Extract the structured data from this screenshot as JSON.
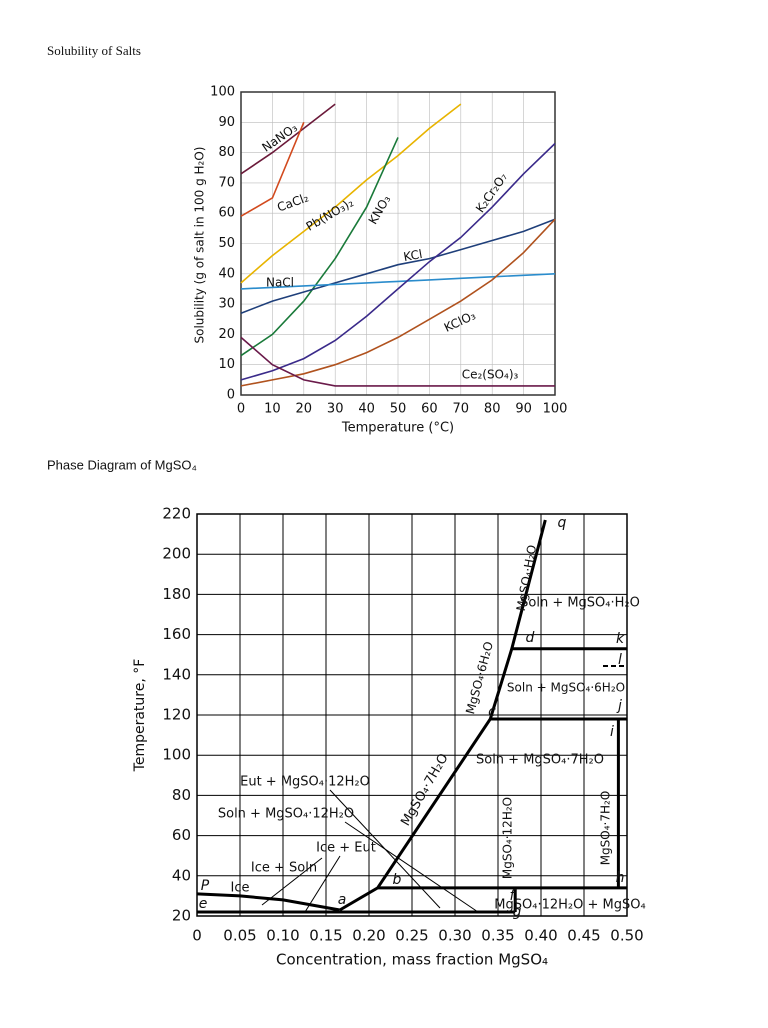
{
  "chart_data": [
    {
      "type": "line",
      "title": "Solubility of Salts",
      "x_label": "Temperature (°C)",
      "y_label": "Solubility (g of salt in 100 g H₂O)",
      "x": [
        0,
        10,
        20,
        30,
        40,
        50,
        60,
        70,
        80,
        90,
        100
      ],
      "xlim": [
        0,
        100
      ],
      "ylim": [
        0,
        100
      ],
      "xticks": [
        0,
        10,
        20,
        30,
        40,
        50,
        60,
        70,
        80,
        90,
        100
      ],
      "yticks": [
        0,
        10,
        20,
        30,
        40,
        50,
        60,
        70,
        80,
        90,
        100
      ],
      "grid": true,
      "series": [
        {
          "name": "NaNO₃",
          "color": "#6b1a3a",
          "values": [
            73,
            80,
            88,
            96,
            null,
            null,
            null,
            null,
            null,
            null,
            null
          ]
        },
        {
          "name": "CaCl₂",
          "color": "#d24a1e",
          "values": [
            59,
            65,
            90,
            null,
            null,
            null,
            null,
            null,
            null,
            null,
            null
          ]
        },
        {
          "name": "Pb(NO₃)₂",
          "color": "#e8b400",
          "values": [
            37,
            46,
            54,
            62,
            71,
            79,
            88,
            96,
            null,
            null,
            null
          ]
        },
        {
          "name": "KNO₃",
          "color": "#1a7a3a",
          "values": [
            13,
            20,
            31,
            45,
            62,
            85,
            null,
            null,
            null,
            null,
            null
          ]
        },
        {
          "name": "KCl",
          "color": "#1f3f7a",
          "values": [
            27,
            31,
            34,
            37,
            40,
            43,
            45,
            48,
            51,
            54,
            58
          ]
        },
        {
          "name": "NaCl",
          "color": "#2a8ccc",
          "values": [
            35,
            35.5,
            36,
            36.5,
            37,
            37.5,
            38,
            38.5,
            39,
            39.5,
            40
          ]
        },
        {
          "name": "K₂Cr₂O₇",
          "color": "#3a2a8a",
          "values": [
            5,
            8,
            12,
            18,
            26,
            35,
            44,
            52,
            62,
            73,
            83
          ]
        },
        {
          "name": "KClO₃",
          "color": "#b0521e",
          "values": [
            3,
            5,
            7,
            10,
            14,
            19,
            25,
            31,
            38,
            47,
            58
          ]
        },
        {
          "name": "Ce₂(SO₄)₃",
          "color": "#6a1a4a",
          "values": [
            19,
            10,
            5,
            3,
            3,
            3,
            3,
            3,
            3,
            3,
            3
          ]
        }
      ]
    },
    {
      "type": "line",
      "title": "Phase Diagram of MgSO₄",
      "x_label": "Concentration, mass fraction MgSO₄",
      "y_label": "Temperature, °F",
      "xlim": [
        0,
        0.5
      ],
      "ylim": [
        20,
        220
      ],
      "xticks": [
        0,
        0.05,
        {
          "value": 0.1,
          "label": "0.10"
        },
        0.15,
        {
          "value": 0.2,
          "label": "0.20"
        },
        0.25,
        {
          "value": 0.3,
          "label": "0.30"
        },
        0.35,
        {
          "value": 0.4,
          "label": "0.40"
        },
        0.45,
        {
          "value": 0.5,
          "label": "0.50"
        }
      ],
      "yticks": [
        20,
        40,
        60,
        80,
        100,
        120,
        140,
        160,
        180,
        200,
        220
      ],
      "grid": true,
      "series": [
        {
          "color": "#000000",
          "x": [
            0,
            0.05,
            0.1,
            0.166
          ],
          "values": [
            31,
            30,
            28,
            23
          ]
        },
        {
          "color": "#000000",
          "x": [
            0.166,
            0.21,
            0.341,
            0.366,
            0.405
          ],
          "values": [
            23,
            34,
            118,
            153,
            217
          ]
        },
        {
          "color": "#000000",
          "x": [
            0,
            0.37
          ],
          "values": [
            22,
            22
          ]
        },
        {
          "color": "#000000",
          "x": [
            0.21,
            0.5
          ],
          "values": [
            34,
            34
          ]
        },
        {
          "color": "#000000",
          "x": [
            0.341,
            0.5
          ],
          "values": [
            118,
            118
          ]
        },
        {
          "color": "#000000",
          "x": [
            0.366,
            0.5
          ],
          "values": [
            153,
            153
          ]
        },
        {
          "color": "#000000",
          "x": [
            0.37,
            0.37
          ],
          "values": [
            22,
            34
          ]
        },
        {
          "color": "#000000",
          "x": [
            0.49,
            0.49
          ],
          "values": [
            34,
            118
          ]
        }
      ],
      "annotations": [
        "Eut + MgSO₄·12H₂O",
        "Soln + MgSO₄·12H₂O",
        "Ice + Eut",
        "Ice + Soln",
        "Ice",
        "Soln + MgSO₄·7H₂O",
        "Soln + MgSO₄·6H₂O",
        "Soln + MgSO₄·H₂O",
        "MgSO₄·12H₂O + MgSO₄",
        "MgSO₄·7H₂O",
        "MgSO₄·6H₂O",
        "MgSO₄·H₂O",
        "MgSO₄·12H₂O",
        "MgSO₄·7H₂O",
        "P",
        "e",
        "a",
        "b",
        "c",
        "d",
        "f",
        "g",
        "h",
        "i",
        "j",
        "k",
        "l",
        "q"
      ]
    }
  ]
}
